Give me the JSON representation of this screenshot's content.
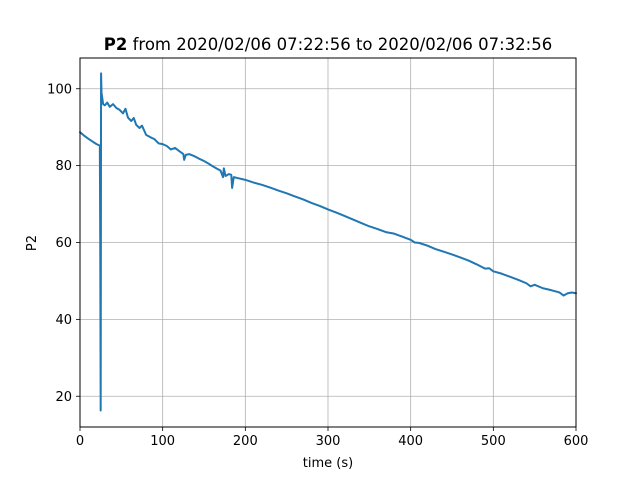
{
  "chart_data": {
    "type": "line",
    "title_bold": "P2",
    "title_rest": " from 2020/02/06 07:22:56 to 2020/02/06 07:32:56",
    "xlabel": "time (s)",
    "ylabel": "P2",
    "xlim": [
      0,
      600
    ],
    "ylim": [
      12,
      108
    ],
    "xticks": [
      0,
      100,
      200,
      300,
      400,
      500,
      600
    ],
    "yticks": [
      20,
      40,
      60,
      80,
      100
    ],
    "grid": true,
    "series_color": "#1f77b4",
    "series": [
      {
        "points": [
          [
            0,
            88.7
          ],
          [
            5,
            87.8
          ],
          [
            10,
            87.0
          ],
          [
            15,
            86.3
          ],
          [
            20,
            85.6
          ],
          [
            24,
            85.2
          ],
          [
            24.5,
            60.0
          ],
          [
            25,
            16.3
          ],
          [
            25.5,
            104.0
          ],
          [
            26,
            99.0
          ],
          [
            27,
            97.5
          ],
          [
            28,
            96.0
          ],
          [
            30,
            95.7
          ],
          [
            33,
            96.4
          ],
          [
            36,
            95.3
          ],
          [
            40,
            96.0
          ],
          [
            44,
            95.0
          ],
          [
            48,
            94.5
          ],
          [
            52,
            93.6
          ],
          [
            55,
            94.8
          ],
          [
            58,
            92.5
          ],
          [
            62,
            91.6
          ],
          [
            65,
            92.4
          ],
          [
            68,
            90.6
          ],
          [
            72,
            89.8
          ],
          [
            75,
            90.4
          ],
          [
            80,
            88.0
          ],
          [
            85,
            87.4
          ],
          [
            90,
            86.9
          ],
          [
            95,
            85.8
          ],
          [
            100,
            85.6
          ],
          [
            105,
            85.1
          ],
          [
            110,
            84.2
          ],
          [
            115,
            84.6
          ],
          [
            120,
            83.8
          ],
          [
            125,
            83.0
          ],
          [
            126,
            81.5
          ],
          [
            128,
            82.8
          ],
          [
            132,
            83.0
          ],
          [
            138,
            82.5
          ],
          [
            145,
            81.7
          ],
          [
            150,
            81.2
          ],
          [
            155,
            80.6
          ],
          [
            160,
            79.9
          ],
          [
            165,
            79.3
          ],
          [
            170,
            78.7
          ],
          [
            173,
            77.0
          ],
          [
            174,
            79.3
          ],
          [
            176,
            77.3
          ],
          [
            180,
            77.8
          ],
          [
            183,
            77.6
          ],
          [
            184,
            74.2
          ],
          [
            186,
            77.0
          ],
          [
            190,
            76.8
          ],
          [
            200,
            76.3
          ],
          [
            210,
            75.6
          ],
          [
            220,
            75.0
          ],
          [
            230,
            74.3
          ],
          [
            240,
            73.5
          ],
          [
            250,
            72.8
          ],
          [
            260,
            72.0
          ],
          [
            270,
            71.2
          ],
          [
            280,
            70.3
          ],
          [
            290,
            69.5
          ],
          [
            300,
            68.6
          ],
          [
            310,
            67.8
          ],
          [
            320,
            66.9
          ],
          [
            330,
            66.0
          ],
          [
            340,
            65.1
          ],
          [
            350,
            64.2
          ],
          [
            360,
            63.5
          ],
          [
            370,
            62.7
          ],
          [
            380,
            62.3
          ],
          [
            390,
            61.5
          ],
          [
            400,
            60.7
          ],
          [
            405,
            60.0
          ],
          [
            410,
            59.9
          ],
          [
            420,
            59.2
          ],
          [
            430,
            58.3
          ],
          [
            440,
            57.6
          ],
          [
            450,
            56.9
          ],
          [
            460,
            56.1
          ],
          [
            470,
            55.3
          ],
          [
            480,
            54.3
          ],
          [
            490,
            53.2
          ],
          [
            495,
            53.3
          ],
          [
            500,
            52.5
          ],
          [
            510,
            51.9
          ],
          [
            520,
            51.1
          ],
          [
            530,
            50.3
          ],
          [
            540,
            49.4
          ],
          [
            545,
            48.6
          ],
          [
            550,
            49.0
          ],
          [
            560,
            48.1
          ],
          [
            570,
            47.6
          ],
          [
            580,
            47.0
          ],
          [
            585,
            46.2
          ],
          [
            590,
            46.8
          ],
          [
            595,
            47.0
          ],
          [
            600,
            46.8
          ]
        ]
      }
    ]
  }
}
